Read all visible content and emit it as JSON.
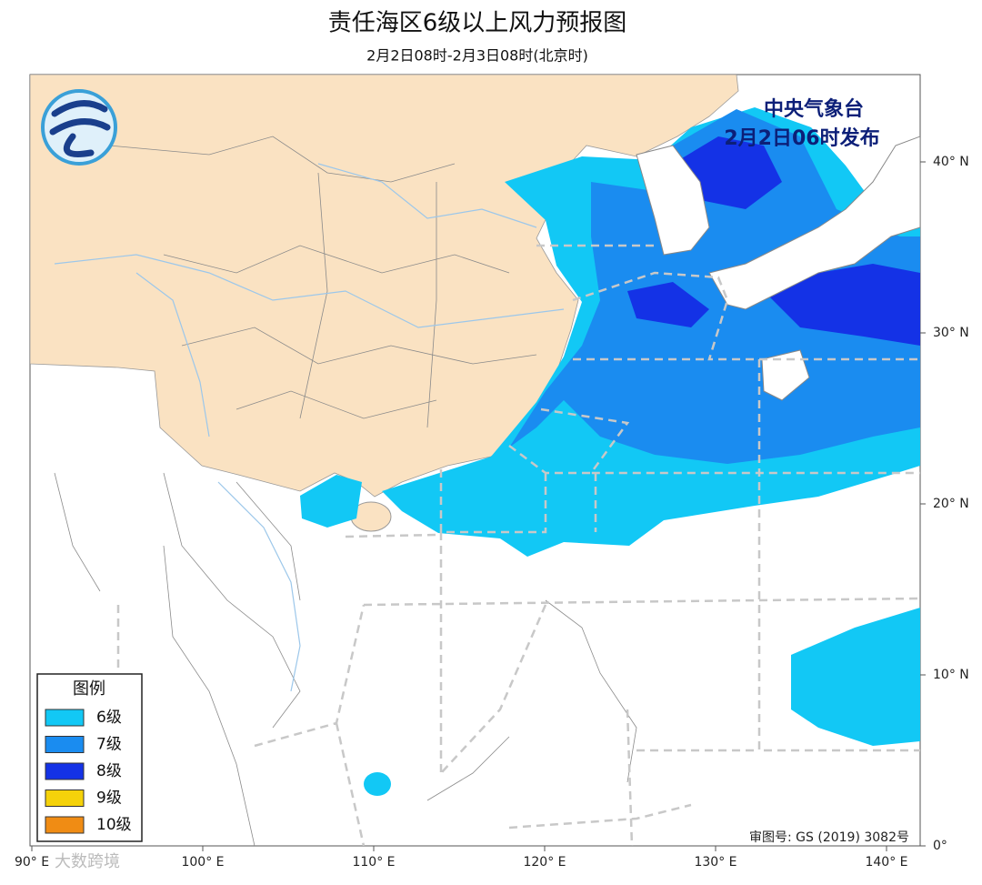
{
  "header": {
    "title": "责任海区6级以上风力预报图",
    "subtitle": "2月2日08时-2月3日08时(北京时)"
  },
  "issuer": {
    "name": "中央气象台",
    "time": "2月2日06时发布"
  },
  "legend": {
    "title": "图例",
    "items": [
      {
        "label": "6级",
        "color": "#12c8f5"
      },
      {
        "label": "7级",
        "color": "#1a8cf0"
      },
      {
        "label": "8级",
        "color": "#1432e6"
      },
      {
        "label": "9级",
        "color": "#f5d20a"
      },
      {
        "label": "10级",
        "color": "#f08c14"
      }
    ]
  },
  "lat_ticks": [
    {
      "value": 40,
      "label": "40° N"
    },
    {
      "value": 30,
      "label": "30° N"
    },
    {
      "value": 20,
      "label": "20° N"
    },
    {
      "value": 10,
      "label": "10° N"
    },
    {
      "value": 0,
      "label": "0°"
    }
  ],
  "lon_ticks": [
    {
      "value": 90,
      "label": "90° E"
    },
    {
      "value": 100,
      "label": "100° E"
    },
    {
      "value": 110,
      "label": "110° E"
    },
    {
      "value": 120,
      "label": "120° E"
    },
    {
      "value": 130,
      "label": "130° E"
    },
    {
      "value": 140,
      "label": "140° E"
    }
  ],
  "approval": "审图号: GS (2019) 3082号",
  "watermark": "大数跨境"
}
